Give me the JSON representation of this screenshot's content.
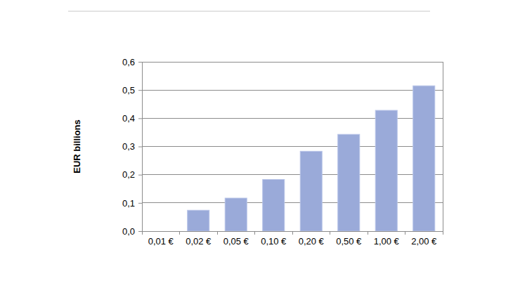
{
  "chart_data": {
    "type": "bar",
    "y_label": "EUR billions",
    "categories": [
      "0,01 €",
      "0,02 €",
      "0,05 €",
      "0,10 €",
      "0,20 €",
      "0,50 €",
      "1,00 €",
      "2,00 €"
    ],
    "values": [
      0,
      0.074,
      0.117,
      0.183,
      0.283,
      0.343,
      0.428,
      0.515
    ],
    "color": "#9aaad9",
    "ylim": [
      0,
      0.6
    ],
    "yticks": [
      {
        "value": 0,
        "label": "0,0"
      },
      {
        "value": 0.1,
        "label": "0,1"
      },
      {
        "value": 0.2,
        "label": "0,2"
      },
      {
        "value": 0.3,
        "label": "0,3"
      },
      {
        "value": 0.4,
        "label": "0,4"
      },
      {
        "value": 0.5,
        "label": "0,5"
      },
      {
        "value": 0.6,
        "label": "0,6"
      }
    ],
    "grid": true
  }
}
